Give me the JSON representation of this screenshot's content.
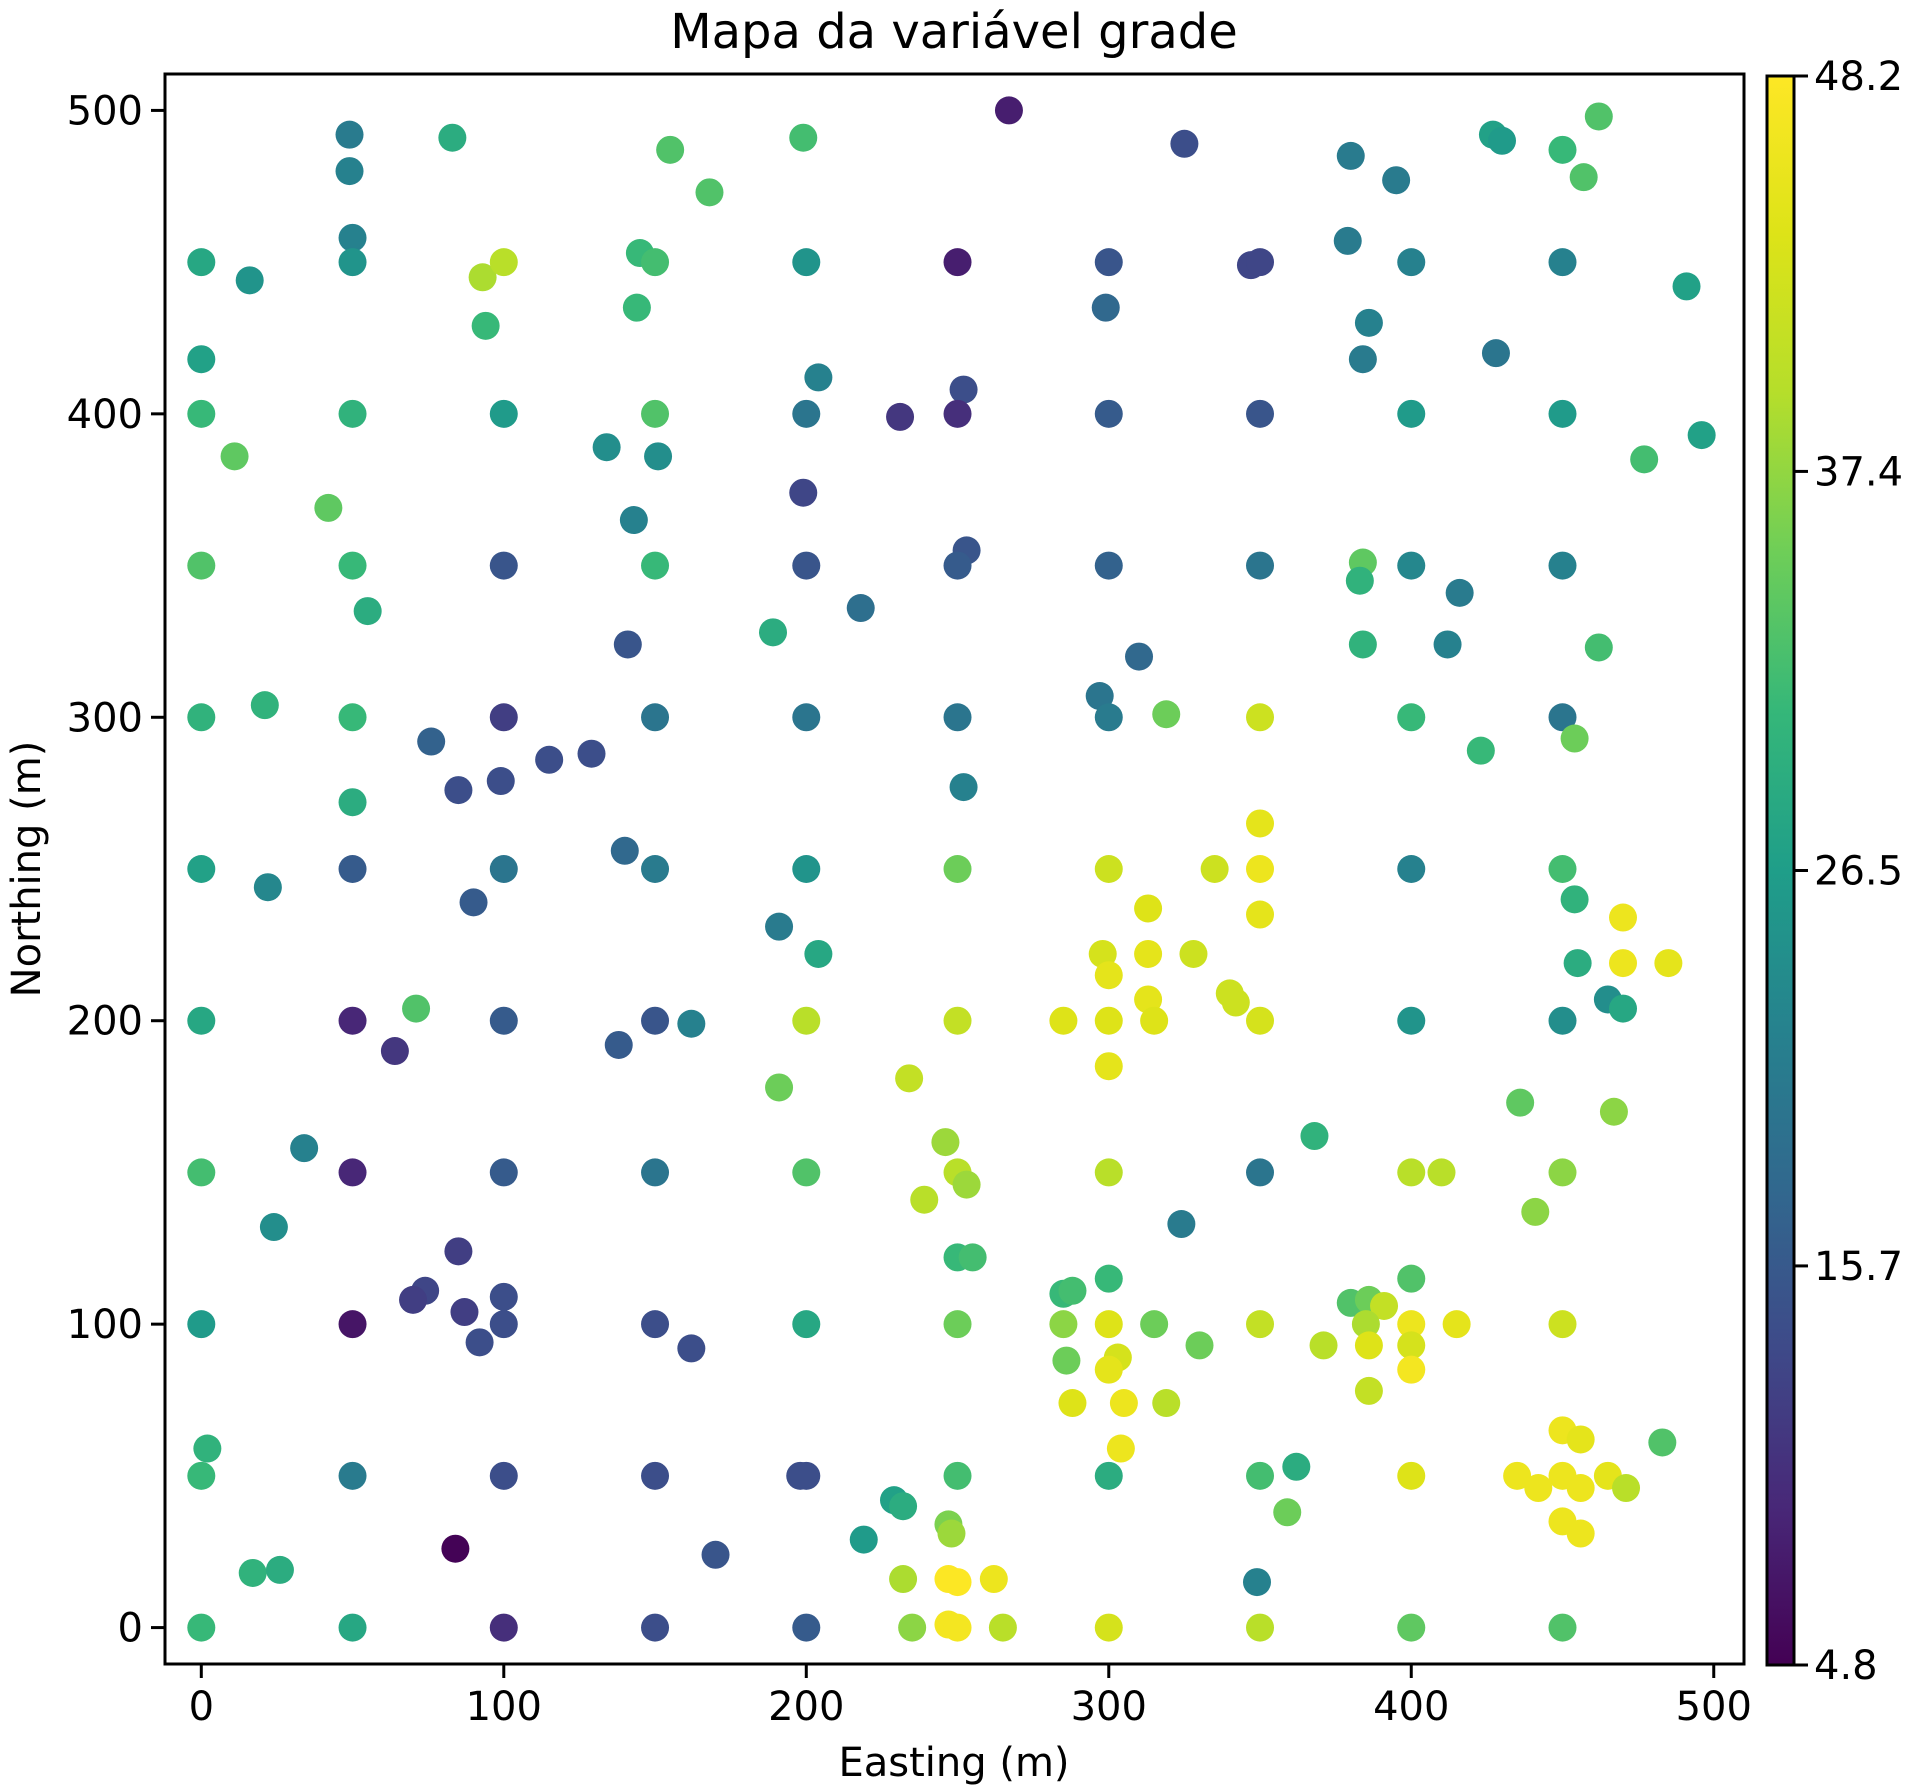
{
  "chart_data": {
    "type": "scatter",
    "title": "Mapa da variável grade",
    "xlabel": "Easting (m)",
    "ylabel": "Northing (m)",
    "xlim": [
      -12,
      510
    ],
    "ylim": [
      -12,
      512
    ],
    "xticks": [
      0,
      100,
      200,
      300,
      400,
      500
    ],
    "yticks": [
      0,
      100,
      200,
      300,
      400,
      500
    ],
    "grid": false,
    "colormap": "viridis",
    "colorbar": {
      "min": 4.8,
      "max": 48.2,
      "ticks": [
        4.8,
        15.7,
        26.5,
        37.4,
        48.2
      ],
      "tick_labels": [
        "4.8",
        "15.7",
        "26.5",
        "37.4",
        "48.2"
      ]
    },
    "points": [
      [
        0,
        450,
        28
      ],
      [
        0,
        418,
        27
      ],
      [
        0,
        400,
        31
      ],
      [
        0,
        350,
        33
      ],
      [
        0,
        300,
        30
      ],
      [
        0,
        250,
        27
      ],
      [
        0,
        200,
        28
      ],
      [
        0,
        150,
        32
      ],
      [
        0,
        100,
        26
      ],
      [
        2,
        59,
        30
      ],
      [
        0,
        50,
        31
      ],
      [
        0,
        0,
        31
      ],
      [
        16,
        444,
        25
      ],
      [
        11,
        386,
        34
      ],
      [
        42,
        369,
        34
      ],
      [
        21,
        304,
        30
      ],
      [
        22,
        244,
        23
      ],
      [
        34,
        158,
        22
      ],
      [
        24,
        132,
        24
      ],
      [
        17,
        18,
        30
      ],
      [
        26,
        19,
        29
      ],
      [
        49,
        492,
        21
      ],
      [
        49,
        480,
        22
      ],
      [
        50,
        458,
        22
      ],
      [
        50,
        450,
        25
      ],
      [
        50,
        400,
        30
      ],
      [
        50,
        350,
        31
      ],
      [
        55,
        335,
        29
      ],
      [
        50,
        300,
        31
      ],
      [
        50,
        272,
        29
      ],
      [
        50,
        250,
        16
      ],
      [
        50,
        200,
        9
      ],
      [
        50,
        150,
        9
      ],
      [
        50,
        100,
        7
      ],
      [
        50,
        50,
        21
      ],
      [
        50,
        0,
        28
      ],
      [
        83,
        491,
        29
      ],
      [
        93,
        445,
        39
      ],
      [
        100,
        450,
        40
      ],
      [
        94,
        429,
        31
      ],
      [
        100,
        400,
        26
      ],
      [
        100,
        350,
        15
      ],
      [
        100,
        300,
        12
      ],
      [
        76,
        292,
        17
      ],
      [
        85,
        276,
        14
      ],
      [
        99,
        279,
        14
      ],
      [
        100,
        250,
        20
      ],
      [
        90,
        239,
        16
      ],
      [
        71,
        204,
        33
      ],
      [
        64,
        190,
        11
      ],
      [
        100,
        200,
        16
      ],
      [
        100,
        150,
        16
      ],
      [
        85,
        124,
        12
      ],
      [
        74,
        111,
        13
      ],
      [
        70,
        108,
        12
      ],
      [
        87,
        104,
        12
      ],
      [
        100,
        109,
        14
      ],
      [
        100,
        100,
        14
      ],
      [
        92,
        94,
        14
      ],
      [
        100,
        50,
        14
      ],
      [
        84,
        26,
        5
      ],
      [
        100,
        0,
        10
      ],
      [
        115,
        286,
        14
      ],
      [
        129,
        288,
        14
      ],
      [
        155,
        487,
        33
      ],
      [
        168,
        473,
        33
      ],
      [
        145,
        453,
        31
      ],
      [
        150,
        450,
        32
      ],
      [
        144,
        435,
        31
      ],
      [
        150,
        400,
        33
      ],
      [
        134,
        389,
        24
      ],
      [
        151,
        386,
        24
      ],
      [
        143,
        365,
        22
      ],
      [
        150,
        350,
        31
      ],
      [
        141,
        324,
        15
      ],
      [
        150,
        300,
        20
      ],
      [
        140,
        256,
        18
      ],
      [
        150,
        250,
        21
      ],
      [
        138,
        192,
        16
      ],
      [
        150,
        200,
        15
      ],
      [
        162,
        199,
        22
      ],
      [
        150,
        150,
        20
      ],
      [
        150,
        100,
        14
      ],
      [
        162,
        92,
        14
      ],
      [
        150,
        50,
        14
      ],
      [
        170,
        24,
        15
      ],
      [
        150,
        0,
        14
      ],
      [
        199,
        491,
        32
      ],
      [
        200,
        450,
        25
      ],
      [
        204,
        412,
        22
      ],
      [
        200,
        400,
        20
      ],
      [
        199,
        374,
        13
      ],
      [
        200,
        350,
        15
      ],
      [
        218,
        336,
        19
      ],
      [
        189,
        328,
        29
      ],
      [
        200,
        300,
        20
      ],
      [
        200,
        250,
        25
      ],
      [
        191,
        231,
        21
      ],
      [
        204,
        222,
        28
      ],
      [
        200,
        200,
        40
      ],
      [
        191,
        178,
        35
      ],
      [
        200,
        150,
        33
      ],
      [
        200,
        100,
        28
      ],
      [
        198,
        50,
        14
      ],
      [
        200,
        50,
        14
      ],
      [
        200,
        0,
        16
      ],
      [
        267,
        500,
        8
      ],
      [
        250,
        450,
        8
      ],
      [
        252,
        408,
        14
      ],
      [
        231,
        399,
        11
      ],
      [
        250,
        400,
        10
      ],
      [
        253,
        355,
        15
      ],
      [
        250,
        350,
        16
      ],
      [
        250,
        300,
        20
      ],
      [
        252,
        277,
        22
      ],
      [
        250,
        250,
        35
      ],
      [
        250,
        200,
        41
      ],
      [
        234,
        181,
        41
      ],
      [
        246,
        160,
        38
      ],
      [
        250,
        150,
        40
      ],
      [
        253,
        146,
        38
      ],
      [
        239,
        141,
        40
      ],
      [
        250,
        122,
        31
      ],
      [
        255,
        122,
        32
      ],
      [
        250,
        100,
        35
      ],
      [
        250,
        50,
        32
      ],
      [
        229,
        42,
        27
      ],
      [
        232,
        40,
        29
      ],
      [
        219,
        29,
        26
      ],
      [
        247,
        34,
        36
      ],
      [
        248,
        31,
        38
      ],
      [
        232,
        16,
        39
      ],
      [
        247,
        16,
        48
      ],
      [
        250,
        15,
        48
      ],
      [
        262,
        16,
        46
      ],
      [
        235,
        0,
        37
      ],
      [
        247,
        1,
        47
      ],
      [
        250,
        0,
        47
      ],
      [
        265,
        0,
        40
      ],
      [
        325,
        489,
        14
      ],
      [
        300,
        450,
        15
      ],
      [
        347,
        449,
        13
      ],
      [
        350,
        450,
        13
      ],
      [
        299,
        435,
        18
      ],
      [
        300,
        400,
        16
      ],
      [
        350,
        400,
        15
      ],
      [
        300,
        350,
        17
      ],
      [
        310,
        320,
        18
      ],
      [
        350,
        350,
        20
      ],
      [
        297,
        307,
        20
      ],
      [
        300,
        300,
        21
      ],
      [
        319,
        301,
        35
      ],
      [
        350,
        300,
        42
      ],
      [
        350,
        265,
        45
      ],
      [
        300,
        250,
        42
      ],
      [
        335,
        250,
        42
      ],
      [
        350,
        250,
        46
      ],
      [
        313,
        237,
        44
      ],
      [
        350,
        235,
        45
      ],
      [
        298,
        222,
        43
      ],
      [
        313,
        222,
        45
      ],
      [
        328,
        222,
        42
      ],
      [
        300,
        215,
        45
      ],
      [
        340,
        209,
        42
      ],
      [
        342,
        206,
        42
      ],
      [
        313,
        207,
        45
      ],
      [
        285,
        200,
        44
      ],
      [
        300,
        200,
        44
      ],
      [
        315,
        200,
        44
      ],
      [
        350,
        200,
        43
      ],
      [
        300,
        185,
        45
      ],
      [
        300,
        150,
        40
      ],
      [
        324,
        133,
        21
      ],
      [
        285,
        110,
        31
      ],
      [
        288,
        111,
        32
      ],
      [
        300,
        115,
        31
      ],
      [
        285,
        100,
        37
      ],
      [
        300,
        100,
        44
      ],
      [
        315,
        100,
        35
      ],
      [
        303,
        89,
        43
      ],
      [
        330,
        93,
        35
      ],
      [
        286,
        88,
        35
      ],
      [
        300,
        85,
        45
      ],
      [
        288,
        74,
        44
      ],
      [
        305,
        74,
        46
      ],
      [
        319,
        74,
        40
      ],
      [
        304,
        59,
        46
      ],
      [
        300,
        50,
        29
      ],
      [
        300,
        0,
        43
      ],
      [
        350,
        150,
        20
      ],
      [
        350,
        100,
        41
      ],
      [
        371,
        93,
        40
      ],
      [
        350,
        50,
        32
      ],
      [
        359,
        38,
        35
      ],
      [
        362,
        53,
        29
      ],
      [
        349,
        15,
        22
      ],
      [
        350,
        0,
        40
      ],
      [
        380,
        485,
        21
      ],
      [
        395,
        477,
        21
      ],
      [
        379,
        457,
        21
      ],
      [
        400,
        450,
        22
      ],
      [
        386,
        430,
        22
      ],
      [
        384,
        418,
        21
      ],
      [
        400,
        400,
        26
      ],
      [
        428,
        420,
        20
      ],
      [
        384,
        351,
        34
      ],
      [
        383,
        345,
        30
      ],
      [
        400,
        350,
        23
      ],
      [
        384,
        324,
        30
      ],
      [
        416,
        341,
        21
      ],
      [
        412,
        324,
        22
      ],
      [
        400,
        300,
        31
      ],
      [
        423,
        289,
        31
      ],
      [
        400,
        250,
        22
      ],
      [
        400,
        200,
        25
      ],
      [
        368,
        162,
        30
      ],
      [
        400,
        150,
        40
      ],
      [
        410,
        150,
        40
      ],
      [
        400,
        115,
        33
      ],
      [
        380,
        107,
        33
      ],
      [
        386,
        108,
        35
      ],
      [
        391,
        106,
        41
      ],
      [
        385,
        100,
        39
      ],
      [
        400,
        100,
        46
      ],
      [
        415,
        100,
        45
      ],
      [
        386,
        93,
        44
      ],
      [
        400,
        93,
        43
      ],
      [
        400,
        85,
        47
      ],
      [
        386,
        78,
        41
      ],
      [
        400,
        50,
        44
      ],
      [
        427,
        492,
        27
      ],
      [
        430,
        490,
        26
      ],
      [
        450,
        487,
        31
      ],
      [
        462,
        498,
        33
      ],
      [
        457,
        478,
        33
      ],
      [
        450,
        450,
        22
      ],
      [
        491,
        442,
        27
      ],
      [
        450,
        400,
        26
      ],
      [
        496,
        393,
        27
      ],
      [
        477,
        385,
        32
      ],
      [
        450,
        350,
        22
      ],
      [
        462,
        323,
        32
      ],
      [
        450,
        300,
        20
      ],
      [
        454,
        293,
        35
      ],
      [
        450,
        250,
        32
      ],
      [
        454,
        240,
        30
      ],
      [
        470,
        234,
        46
      ],
      [
        455,
        219,
        29
      ],
      [
        470,
        219,
        46
      ],
      [
        485,
        219,
        45
      ],
      [
        465,
        207,
        24
      ],
      [
        470,
        204,
        28
      ],
      [
        450,
        200,
        24
      ],
      [
        467,
        170,
        37
      ],
      [
        436,
        173,
        34
      ],
      [
        450,
        150,
        37
      ],
      [
        441,
        137,
        37
      ],
      [
        450,
        100,
        42
      ],
      [
        450,
        65,
        46
      ],
      [
        456,
        62,
        45
      ],
      [
        483,
        61,
        33
      ],
      [
        435,
        50,
        46
      ],
      [
        450,
        50,
        46
      ],
      [
        465,
        50,
        45
      ],
      [
        442,
        46,
        46
      ],
      [
        456,
        46,
        46
      ],
      [
        471,
        46,
        40
      ],
      [
        450,
        35,
        46
      ],
      [
        456,
        31,
        46
      ],
      [
        400,
        0,
        34
      ],
      [
        450,
        0,
        33
      ]
    ]
  }
}
